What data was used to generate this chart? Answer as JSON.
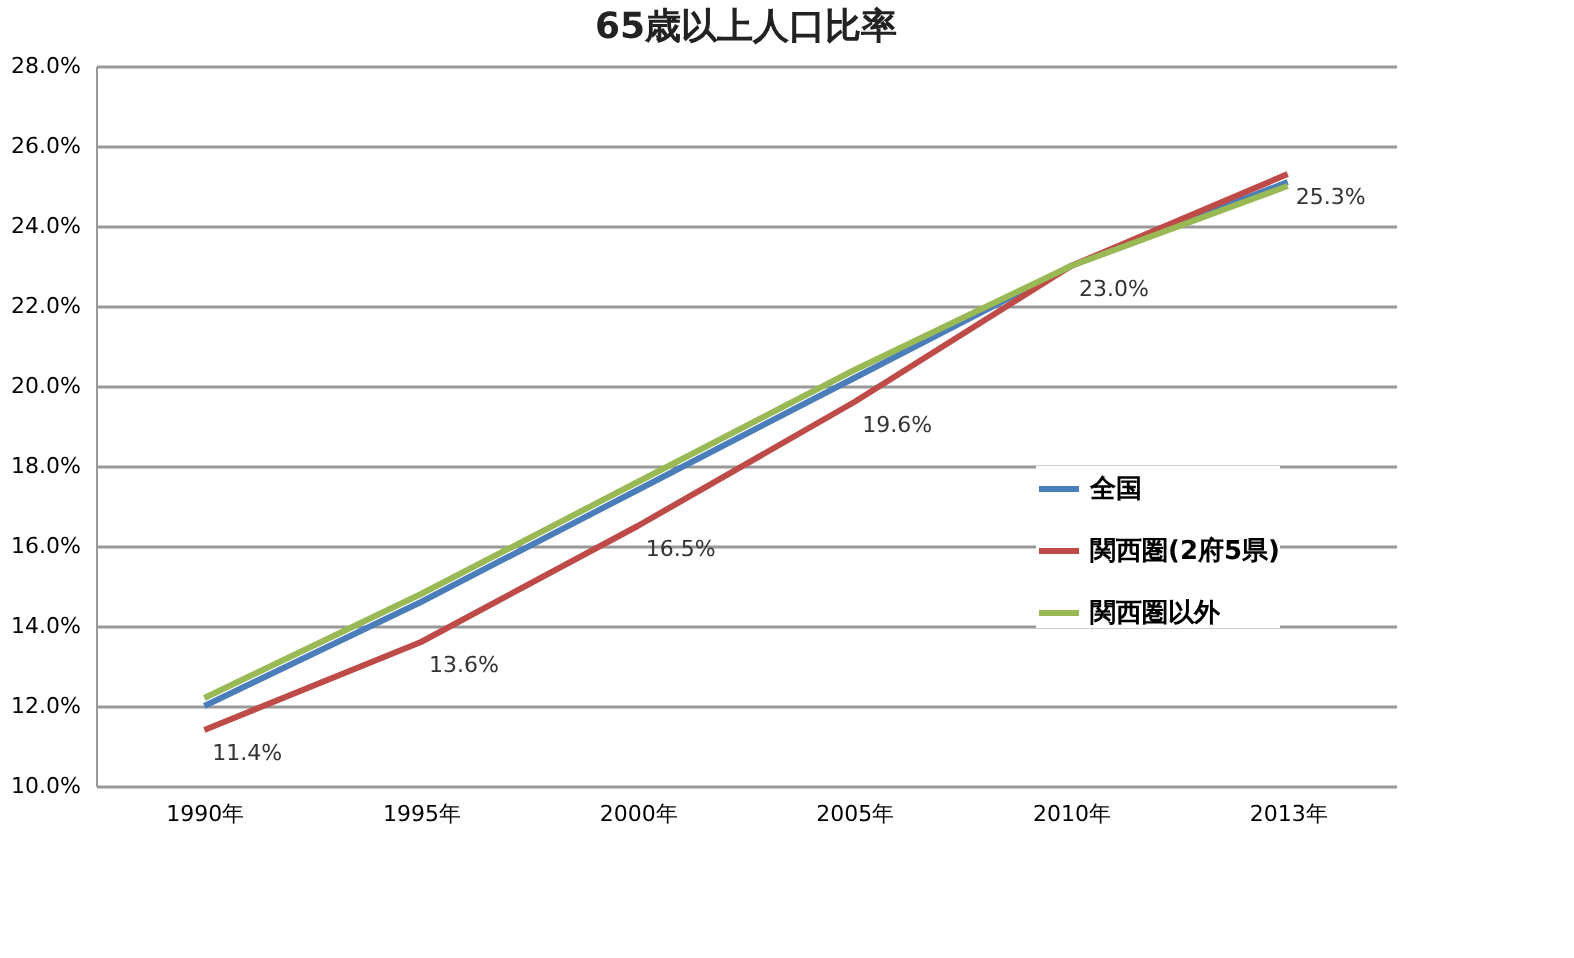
{
  "chart_data": {
    "type": "line",
    "title": "65歳以上人口比率",
    "categories": [
      "1990年",
      "1995年",
      "2000年",
      "2005年",
      "2010年",
      "2013年"
    ],
    "series": [
      {
        "name": "全国",
        "color": "#4a7ebb",
        "values": [
          12.0,
          14.6,
          17.4,
          20.2,
          23.0,
          25.1
        ]
      },
      {
        "name": "関西圏(2府5県)",
        "color": "#be4b48",
        "values": [
          11.4,
          13.6,
          16.5,
          19.6,
          23.0,
          25.3
        ],
        "value_labels": [
          "11.4%",
          "13.6%",
          "16.5%",
          "19.6%",
          "23.0%",
          "25.3%"
        ]
      },
      {
        "name": "関西圏以外",
        "color": "#98b954",
        "values": [
          12.2,
          14.8,
          17.6,
          20.4,
          23.0,
          25.0
        ]
      }
    ],
    "ylim": [
      10,
      28
    ],
    "yticks": [
      {
        "value": 10,
        "label": "10.0%"
      },
      {
        "value": 12,
        "label": "12.0%"
      },
      {
        "value": 14,
        "label": "14.0%"
      },
      {
        "value": 16,
        "label": "16.0%"
      },
      {
        "value": 18,
        "label": "18.0%"
      },
      {
        "value": 20,
        "label": "20.0%"
      },
      {
        "value": 22,
        "label": "22.0%"
      },
      {
        "value": 24,
        "label": "24.0%"
      },
      {
        "value": 26,
        "label": "26.0%"
      },
      {
        "value": 28,
        "label": "28.0%"
      }
    ],
    "grid": "y",
    "legend": "right",
    "marker": "none"
  }
}
